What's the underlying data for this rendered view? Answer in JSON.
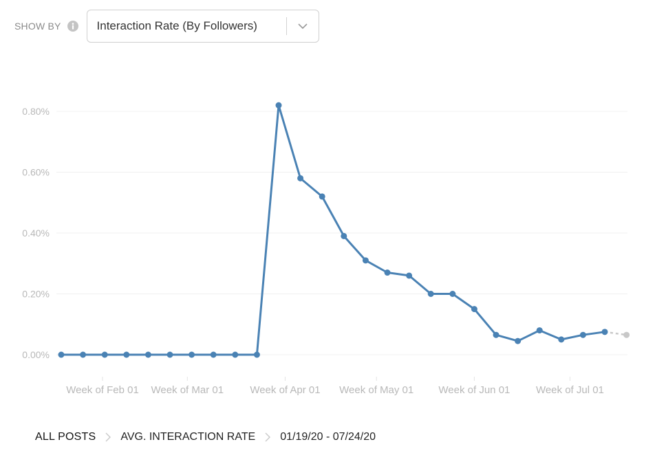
{
  "toolbar": {
    "show_by_label": "SHOW BY",
    "info_icon": "info-icon",
    "selected_metric": "Interaction Rate (By Followers)",
    "dropdown_icon": "chevron-down-icon"
  },
  "chart_data": {
    "type": "line",
    "title": "",
    "xlabel": "",
    "ylabel": "",
    "y_unit": "%",
    "ylim": [
      0,
      0.86
    ],
    "y_ticks": [
      "0.00%",
      "0.20%",
      "0.40%",
      "0.60%",
      "0.80%"
    ],
    "y_tick_values": [
      0,
      0.2,
      0.4,
      0.6,
      0.8
    ],
    "x_tick_labels": [
      "Week of Feb 01",
      "Week of Mar 01",
      "Week of Apr 01",
      "Week of May 01",
      "Week of Jun 01",
      "Week of Jul 01"
    ],
    "x_tick_positions": [
      1.9,
      5.8,
      10.3,
      14.5,
      19.0,
      23.4
    ],
    "grid": true,
    "series": [
      {
        "name": "",
        "color": "#4a82b4",
        "values": [
          0,
          0,
          0,
          0,
          0,
          0,
          0,
          0,
          0,
          0,
          0.82,
          0.58,
          0.52,
          0.39,
          0.31,
          0.27,
          0.26,
          0.2,
          0.2,
          0.15,
          0.065,
          0.045,
          0.08,
          0.05,
          0.065,
          0.075
        ]
      },
      {
        "name": "",
        "color": "#c8c8c8",
        "style": "dashed",
        "x": [
          25,
          26
        ],
        "values": [
          0.075,
          0.065
        ]
      }
    ]
  },
  "breadcrumb": {
    "items": [
      "ALL POSTS",
      "AVG. INTERACTION RATE",
      "01/19/20 - 07/24/20"
    ],
    "separator_icon": "chevron-right-icon"
  }
}
